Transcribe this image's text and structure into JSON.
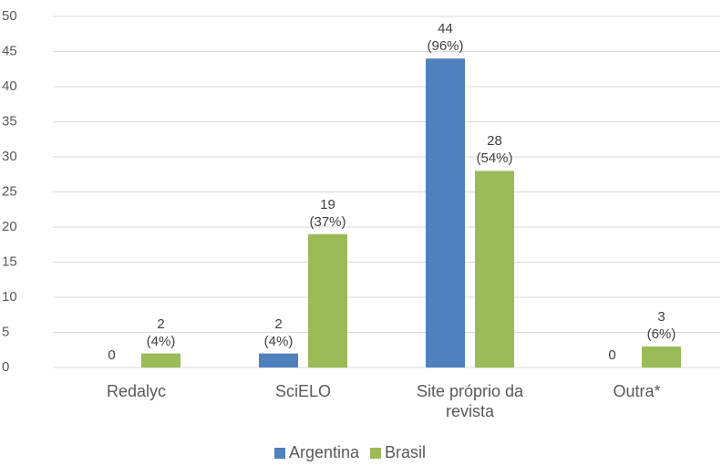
{
  "chart_data": {
    "type": "bar",
    "categories": [
      "Redalyc",
      "SciELO",
      "Site próprio da revista",
      "Outra*"
    ],
    "series": [
      {
        "name": "Argentina",
        "color": "#4f81bd",
        "values": [
          0,
          2,
          44,
          0
        ],
        "value_labels": [
          "0",
          "2\n(4%)",
          "44\n(96%)",
          "0"
        ]
      },
      {
        "name": "Brasil",
        "color": "#9bbb59",
        "values": [
          2,
          19,
          28,
          3
        ],
        "value_labels": [
          "2\n(4%)",
          "19\n(37%)",
          "28\n(54%)",
          "3\n(6%)"
        ]
      }
    ],
    "ylim": [
      0,
      50
    ],
    "yticks": [
      0,
      5,
      10,
      15,
      20,
      25,
      30,
      35,
      40,
      45,
      50
    ],
    "grid": true,
    "legend": "bottom"
  }
}
